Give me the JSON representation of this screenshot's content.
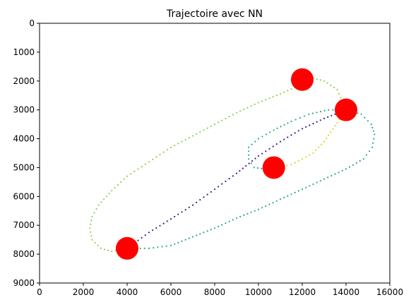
{
  "chart_data": {
    "type": "scatter",
    "title": "Trajectoire avec NN",
    "xlabel": "",
    "ylabel": "",
    "xlim": [
      0,
      16000
    ],
    "ylim": [
      9000,
      0
    ],
    "y_inverted": true,
    "grid": false,
    "x_ticks": [
      "0",
      "2000",
      "4000",
      "6000",
      "8000",
      "10000",
      "12000",
      "14000",
      "16000"
    ],
    "y_ticks": [
      "0",
      "1000",
      "2000",
      "3000",
      "4000",
      "5000",
      "6000",
      "7000",
      "8000",
      "9000"
    ],
    "targets": {
      "color": "#ff0000",
      "points": [
        {
          "x": 12000,
          "y": 1950
        },
        {
          "x": 14000,
          "y": 3000
        },
        {
          "x": 10700,
          "y": 5000
        },
        {
          "x": 4000,
          "y": 7800
        }
      ]
    },
    "trajectory_segments": [
      {
        "color": "#3b1d86",
        "points": [
          [
            4000,
            7800
          ],
          [
            5000,
            7250
          ],
          [
            6000,
            6780
          ],
          [
            7000,
            6300
          ],
          [
            8000,
            5750
          ],
          [
            9000,
            5200
          ],
          [
            10000,
            4600
          ],
          [
            11000,
            4100
          ],
          [
            12000,
            3650
          ],
          [
            13000,
            3300
          ],
          [
            14000,
            3000
          ]
        ]
      },
      {
        "color": "#2aa68a",
        "points": [
          [
            14000,
            3000
          ],
          [
            14700,
            3150
          ],
          [
            15150,
            3500
          ],
          [
            15300,
            3850
          ],
          [
            15200,
            4300
          ],
          [
            14800,
            4700
          ],
          [
            14000,
            5050
          ],
          [
            13000,
            5400
          ],
          [
            12000,
            5750
          ],
          [
            11000,
            6100
          ],
          [
            10000,
            6450
          ],
          [
            9000,
            6750
          ],
          [
            8000,
            7100
          ],
          [
            7000,
            7400
          ],
          [
            6000,
            7700
          ],
          [
            5000,
            7800
          ],
          [
            4000,
            7800
          ]
        ]
      },
      {
        "color": "#2aa68a",
        "points": [
          [
            14000,
            3000
          ],
          [
            13200,
            3000
          ],
          [
            12300,
            3150
          ],
          [
            11500,
            3400
          ],
          [
            10700,
            3700
          ],
          [
            10000,
            4000
          ],
          [
            9550,
            4300
          ],
          [
            9550,
            4700
          ],
          [
            9800,
            5000
          ],
          [
            10300,
            5050
          ],
          [
            10700,
            5000
          ]
        ]
      },
      {
        "color": "#8ed04a",
        "points": [
          [
            4000,
            7800
          ],
          [
            3300,
            7900
          ],
          [
            2800,
            7800
          ],
          [
            2400,
            7500
          ],
          [
            2300,
            7100
          ],
          [
            2400,
            6700
          ],
          [
            2700,
            6300
          ],
          [
            3300,
            5800
          ],
          [
            4000,
            5300
          ],
          [
            5000,
            4800
          ],
          [
            6000,
            4300
          ],
          [
            7000,
            3900
          ],
          [
            8000,
            3500
          ],
          [
            9000,
            3100
          ],
          [
            10000,
            2750
          ],
          [
            11000,
            2450
          ],
          [
            12000,
            2100
          ],
          [
            12500,
            1900
          ],
          [
            13000,
            2000
          ],
          [
            13600,
            2300
          ],
          [
            14000,
            3000
          ]
        ]
      },
      {
        "color": "#d6d62a",
        "points": [
          [
            14000,
            3000
          ],
          [
            13500,
            3550
          ],
          [
            13000,
            4100
          ],
          [
            12500,
            4500
          ],
          [
            12000,
            4700
          ],
          [
            11500,
            4900
          ],
          [
            10700,
            5000
          ]
        ]
      }
    ]
  }
}
